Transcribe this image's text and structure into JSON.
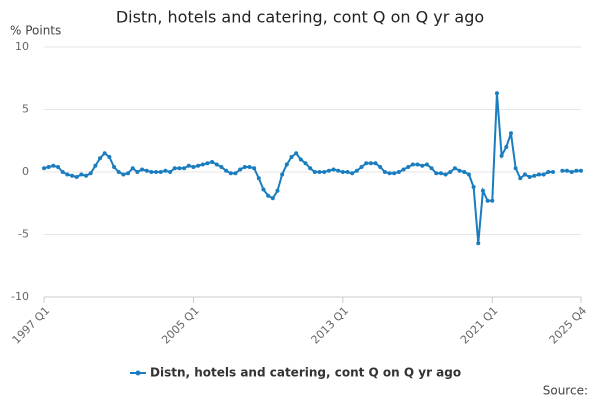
{
  "chart_data": {
    "type": "line",
    "title": "Distn, hotels and catering, cont Q on Q yr ago",
    "y_label": "% Points",
    "source": "Source:",
    "categories": [
      "1997 Q1",
      null,
      null,
      null,
      null,
      null,
      null,
      null,
      null,
      null,
      null,
      null,
      null,
      null,
      null,
      null,
      null,
      null,
      null,
      null,
      null,
      null,
      null,
      null,
      null,
      null,
      null,
      null,
      null,
      null,
      null,
      null,
      "2005 Q1",
      null,
      null,
      null,
      null,
      null,
      null,
      null,
      null,
      null,
      null,
      null,
      null,
      null,
      null,
      null,
      null,
      null,
      null,
      null,
      null,
      null,
      null,
      null,
      null,
      null,
      null,
      null,
      null,
      null,
      null,
      null,
      "2013 Q1",
      null,
      null,
      null,
      null,
      null,
      null,
      null,
      null,
      null,
      null,
      null,
      null,
      null,
      null,
      null,
      null,
      null,
      null,
      null,
      null,
      null,
      null,
      null,
      null,
      null,
      null,
      null,
      null,
      null,
      null,
      null,
      "2021 Q1",
      null,
      null,
      null,
      null,
      null,
      null,
      null,
      null,
      null,
      null,
      null,
      null,
      null,
      null,
      null,
      null,
      null,
      null,
      "2025 Q4"
    ],
    "series": [
      {
        "name": "Distn, hotels and catering, cont Q on Q yr ago",
        "color": "#1a7dbf",
        "values": [
          0.3,
          0.4,
          0.5,
          0.4,
          0.0,
          -0.2,
          -0.3,
          -0.4,
          -0.2,
          -0.3,
          -0.1,
          0.5,
          1.1,
          1.5,
          1.2,
          0.4,
          0.0,
          -0.2,
          -0.1,
          0.3,
          0.0,
          0.2,
          0.1,
          0.0,
          0.0,
          0.0,
          0.1,
          0.0,
          0.3,
          0.3,
          0.3,
          0.5,
          0.4,
          0.5,
          0.6,
          0.7,
          0.8,
          0.6,
          0.4,
          0.1,
          -0.1,
          -0.1,
          0.2,
          0.4,
          0.4,
          0.3,
          -0.5,
          -1.4,
          -1.9,
          -2.1,
          -1.5,
          -0.2,
          0.6,
          1.2,
          1.5,
          1.0,
          0.7,
          0.3,
          0.0,
          0.0,
          0.0,
          0.1,
          0.2,
          0.1,
          0.0,
          0.0,
          -0.1,
          0.1,
          0.4,
          0.7,
          0.7,
          0.7,
          0.4,
          0.0,
          -0.1,
          -0.1,
          0.0,
          0.2,
          0.4,
          0.6,
          0.6,
          0.5,
          0.6,
          0.3,
          -0.1,
          -0.1,
          -0.2,
          0.0,
          0.3,
          0.1,
          0.0,
          -0.2,
          -1.2,
          -5.7,
          -1.5,
          -2.3,
          -2.3,
          6.3,
          1.3,
          2.0,
          3.1,
          0.3,
          -0.5,
          -0.2,
          -0.4,
          -0.3,
          -0.2,
          -0.2,
          0.0,
          0.0,
          null,
          0.1,
          0.1,
          0.0,
          0.1,
          0.1
        ]
      }
    ],
    "ylim": [
      -10,
      10
    ],
    "yticks": [
      10,
      5,
      0,
      -5,
      -10
    ],
    "grid": true,
    "legend": "bottom"
  }
}
